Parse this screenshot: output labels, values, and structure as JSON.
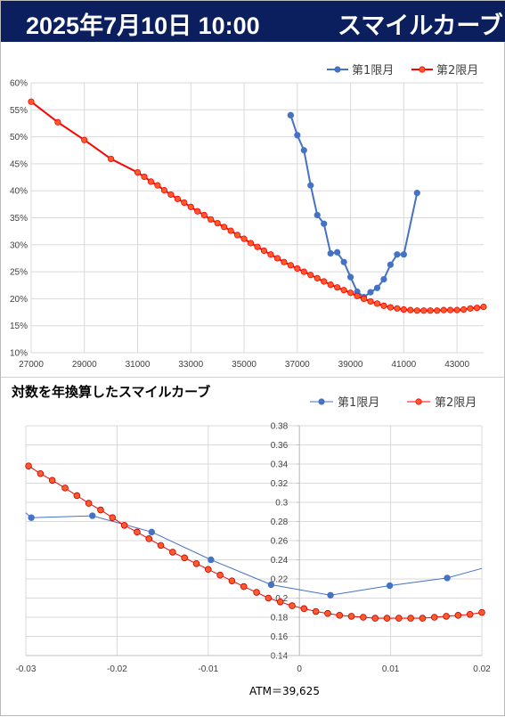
{
  "header": {
    "date": "2025年7月10日 10:00",
    "title": "スマイルカーブ"
  },
  "chart2_title": "対数を年換算したスマイルカーブ",
  "atm_label": "ATM＝39,625",
  "colors": {
    "series1": "#4472c4",
    "series2": "#ff0000",
    "series2_marker_fill": "#ff5a2a",
    "header_bg": "#0b1f5e"
  },
  "chart_data": [
    {
      "type": "line",
      "title": "",
      "xlabel": "",
      "ylabel": "",
      "xlim": [
        27000,
        44000
      ],
      "ylim": [
        0.1,
        0.6
      ],
      "x_ticks": [
        27000,
        29000,
        31000,
        33000,
        35000,
        37000,
        39000,
        41000,
        43000
      ],
      "x_tick_labels": [
        "27000",
        "29000",
        "31000",
        "33000",
        "35000",
        "37000",
        "39000",
        "41000",
        "43000"
      ],
      "y_ticks": [
        0.1,
        0.15,
        0.2,
        0.25,
        0.3,
        0.35,
        0.4,
        0.45,
        0.5,
        0.55,
        0.6
      ],
      "y_tick_labels": [
        "10%",
        "15%",
        "20%",
        "25%",
        "30%",
        "35%",
        "40%",
        "45%",
        "50%",
        "55%",
        "60%"
      ],
      "grid": true,
      "legend": "top-right",
      "series": [
        {
          "name": "第1限月",
          "x": [
            36750,
            36750,
            37000,
            37250,
            37500,
            37750,
            38000,
            38250,
            38500,
            38750,
            39000,
            39250,
            39500,
            39750,
            40000,
            40250,
            40500,
            40750,
            41000,
            41500
          ],
          "y": [
            0.54,
            0.54,
            0.503,
            0.475,
            0.41,
            0.355,
            0.339,
            0.284,
            0.286,
            0.268,
            0.24,
            0.213,
            0.203,
            0.212,
            0.22,
            0.236,
            0.263,
            0.282,
            0.282,
            0.396
          ]
        },
        {
          "name": "第2限月",
          "x": [
            27000,
            28000,
            29000,
            30000,
            31000,
            31250,
            31500,
            31750,
            32000,
            32250,
            32500,
            32750,
            33000,
            33250,
            33500,
            33750,
            34000,
            34250,
            34500,
            34750,
            35000,
            35250,
            35500,
            35750,
            36000,
            36250,
            36500,
            36750,
            37000,
            37250,
            37500,
            37750,
            38000,
            38250,
            38500,
            38750,
            39000,
            39250,
            39500,
            39750,
            40000,
            40250,
            40500,
            40750,
            41000,
            41250,
            41500,
            41750,
            42000,
            42250,
            42500,
            42750,
            43000,
            43250,
            43500,
            43750,
            44000
          ],
          "y": [
            0.565,
            0.527,
            0.494,
            0.459,
            0.434,
            0.426,
            0.417,
            0.41,
            0.401,
            0.393,
            0.385,
            0.378,
            0.37,
            0.362,
            0.355,
            0.347,
            0.34,
            0.333,
            0.326,
            0.318,
            0.311,
            0.303,
            0.296,
            0.289,
            0.282,
            0.275,
            0.268,
            0.262,
            0.256,
            0.25,
            0.244,
            0.238,
            0.232,
            0.226,
            0.221,
            0.216,
            0.211,
            0.205,
            0.2,
            0.195,
            0.191,
            0.187,
            0.184,
            0.182,
            0.18,
            0.179,
            0.178,
            0.178,
            0.178,
            0.178,
            0.179,
            0.179,
            0.179,
            0.18,
            0.182,
            0.183,
            0.185
          ]
        }
      ]
    },
    {
      "type": "line",
      "title": "対数を年換算したスマイルカーブ",
      "xlabel": "ATM＝39,625",
      "ylabel": "",
      "xlim": [
        -0.03,
        0.02
      ],
      "ylim": [
        0.14,
        0.38
      ],
      "x_ticks": [
        -0.03,
        -0.02,
        -0.01,
        0,
        0.01,
        0.02
      ],
      "x_tick_labels": [
        "-0.03",
        "-0.02",
        "-0.01",
        "0",
        "0.01",
        "0.02"
      ],
      "y_ticks": [
        0.14,
        0.16,
        0.18,
        0.2,
        0.22,
        0.24,
        0.26,
        0.28,
        0.3,
        0.32,
        0.34,
        0.36,
        0.38
      ],
      "y_tick_labels": [
        "0.14",
        "0.16",
        "0.18",
        "0.2",
        "0.22",
        "0.24",
        "0.26",
        "0.28",
        "0.3",
        "0.32",
        "0.34",
        "0.36",
        "0.38"
      ],
      "grid": true,
      "legend": "top-right",
      "series": [
        {
          "name": "第1限月",
          "x": [
            -0.03,
            -0.0294,
            -0.0227,
            -0.0162,
            -0.0097,
            -0.0031,
            0.0034,
            0.0099,
            0.0162,
            0.02
          ],
          "y": [
            0.289,
            0.284,
            0.286,
            0.269,
            0.24,
            0.214,
            0.203,
            0.213,
            0.221,
            0.231
          ],
          "markers": [
            false,
            true,
            true,
            true,
            true,
            true,
            true,
            true,
            true,
            false
          ]
        },
        {
          "name": "第2限月",
          "x": [
            -0.0297,
            -0.0284,
            -0.0271,
            -0.0257,
            -0.0244,
            -0.0231,
            -0.0218,
            -0.0205,
            -0.0192,
            -0.0178,
            -0.0165,
            -0.0152,
            -0.0139,
            -0.0126,
            -0.0113,
            -0.01,
            -0.0087,
            -0.0074,
            -0.0061,
            -0.0047,
            -0.0034,
            -0.0021,
            -0.0008,
            0.0005,
            0.0018,
            0.0031,
            0.0044,
            0.0057,
            0.007,
            0.0083,
            0.0096,
            0.0109,
            0.0122,
            0.0135,
            0.0148,
            0.0161,
            0.0174,
            0.0187,
            0.02
          ],
          "y": [
            0.338,
            0.33,
            0.323,
            0.315,
            0.307,
            0.299,
            0.292,
            0.284,
            0.276,
            0.269,
            0.262,
            0.255,
            0.248,
            0.242,
            0.236,
            0.23,
            0.224,
            0.218,
            0.212,
            0.206,
            0.2,
            0.196,
            0.192,
            0.189,
            0.186,
            0.184,
            0.182,
            0.181,
            0.18,
            0.179,
            0.179,
            0.179,
            0.179,
            0.179,
            0.18,
            0.181,
            0.182,
            0.183,
            0.185
          ]
        }
      ]
    }
  ]
}
